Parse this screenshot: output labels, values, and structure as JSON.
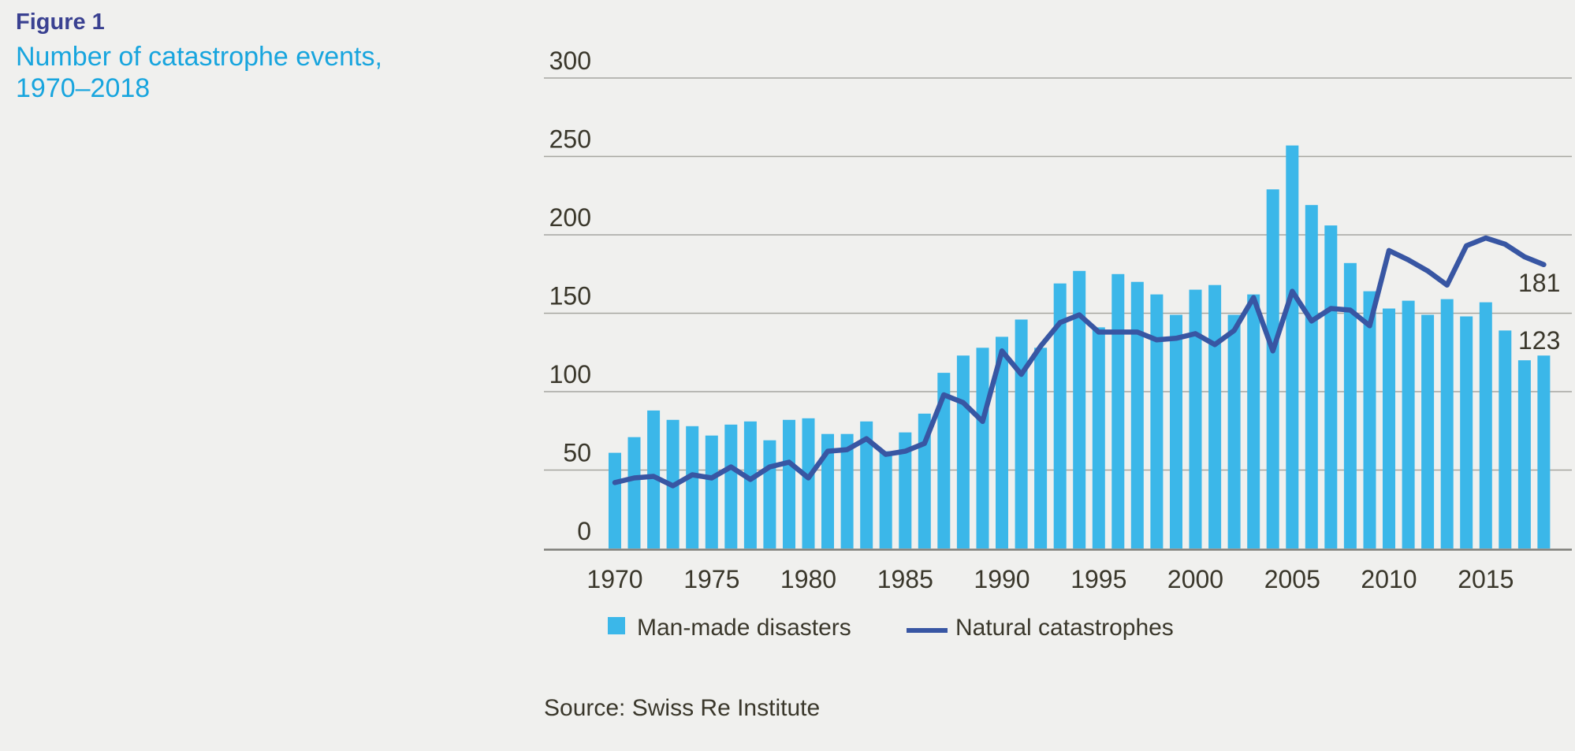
{
  "figure_header": {
    "label": "Figure 1",
    "title_line1": "Number of catastrophe events,",
    "title_line2": "1970–2018"
  },
  "colors": {
    "background": "#f0f0ee",
    "bar": "#3bb7e9",
    "line": "#3856a3",
    "title_label": "#3a4191",
    "subtitle": "#18a5de",
    "text": "#3a372b",
    "gridline": "#a5a5a0",
    "axis_line": "#7d7d78"
  },
  "chart_data": {
    "type": "bar",
    "title": "Number of catastrophe events, 1970–2018",
    "xlabel": "",
    "ylabel": "",
    "ylim": [
      0,
      300
    ],
    "yticks": [
      0,
      50,
      100,
      150,
      200,
      250,
      300
    ],
    "xticks": [
      1970,
      1975,
      1980,
      1985,
      1990,
      1995,
      2000,
      2005,
      2010,
      2015
    ],
    "grid": "horizontal",
    "legend_position": "bottom",
    "x": [
      1970,
      1971,
      1972,
      1973,
      1974,
      1975,
      1976,
      1977,
      1978,
      1979,
      1980,
      1981,
      1982,
      1983,
      1984,
      1985,
      1986,
      1987,
      1988,
      1989,
      1990,
      1991,
      1992,
      1993,
      1994,
      1995,
      1996,
      1997,
      1998,
      1999,
      2000,
      2001,
      2002,
      2003,
      2004,
      2005,
      2006,
      2007,
      2008,
      2009,
      2010,
      2011,
      2012,
      2013,
      2014,
      2015,
      2016,
      2017,
      2018
    ],
    "series": [
      {
        "name": "Man-made disasters",
        "type": "bar",
        "color": "#3bb7e9",
        "values": [
          61,
          71,
          88,
          82,
          78,
          72,
          79,
          81,
          69,
          82,
          83,
          73,
          73,
          81,
          62,
          74,
          86,
          112,
          123,
          128,
          135,
          146,
          128,
          169,
          177,
          141,
          175,
          170,
          162,
          149,
          165,
          168,
          149,
          162,
          229,
          257,
          219,
          206,
          182,
          164,
          153,
          158,
          149,
          159,
          148,
          157,
          139,
          120,
          123
        ]
      },
      {
        "name": "Natural catastrophes",
        "type": "line",
        "color": "#3856a3",
        "values": [
          42,
          45,
          46,
          40,
          47,
          45,
          52,
          44,
          52,
          55,
          45,
          62,
          63,
          70,
          60,
          62,
          67,
          98,
          93,
          81,
          126,
          111,
          129,
          144,
          149,
          138,
          138,
          138,
          133,
          134,
          137,
          130,
          139,
          160,
          126,
          164,
          145,
          153,
          152,
          142,
          190,
          184,
          177,
          168,
          193,
          198,
          194,
          186,
          181
        ]
      }
    ],
    "annotations": [
      {
        "series": "Natural catastrophes",
        "year": 2018,
        "text": "181"
      },
      {
        "series": "Man-made disasters",
        "year": 2018,
        "text": "123"
      }
    ]
  },
  "source_line": "Source: Swiss Re Institute"
}
